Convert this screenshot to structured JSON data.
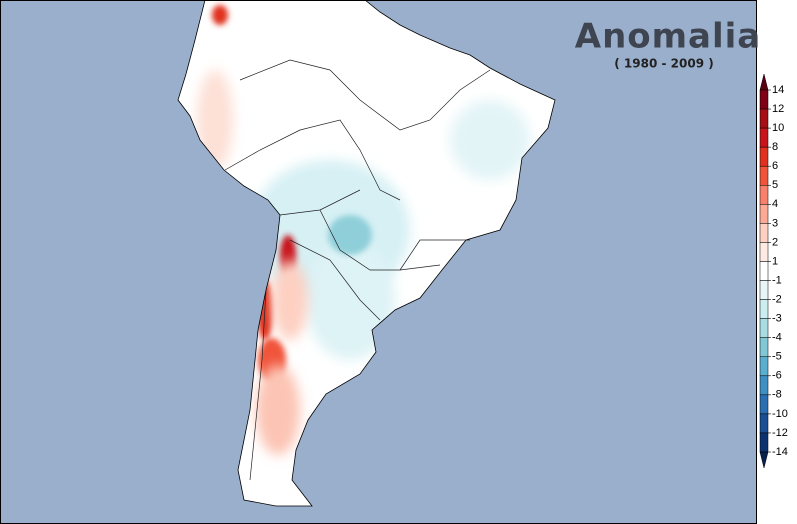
{
  "title": "Anomalia",
  "subtitle": "( 1980 - 2009 )",
  "legend": {
    "levels": [
      14,
      12,
      10,
      8,
      6,
      5,
      4,
      3,
      2,
      1,
      -1,
      -2,
      -3,
      -4,
      -5,
      -6,
      -8,
      -10,
      -12,
      -14
    ],
    "colors": [
      "#5a0010",
      "#7f0015",
      "#a50f15",
      "#c8151b",
      "#e0301e",
      "#f0553a",
      "#f9816b",
      "#fcaa96",
      "#fdd0c2",
      "#feeae2",
      "#ffffff",
      "#e8f6f8",
      "#cdeef1",
      "#a8dde4",
      "#80c8d6",
      "#5aafd0",
      "#3d8fc4",
      "#2a6fb2",
      "#1a4f96",
      "#0d3270",
      "#08214e"
    ]
  }
}
